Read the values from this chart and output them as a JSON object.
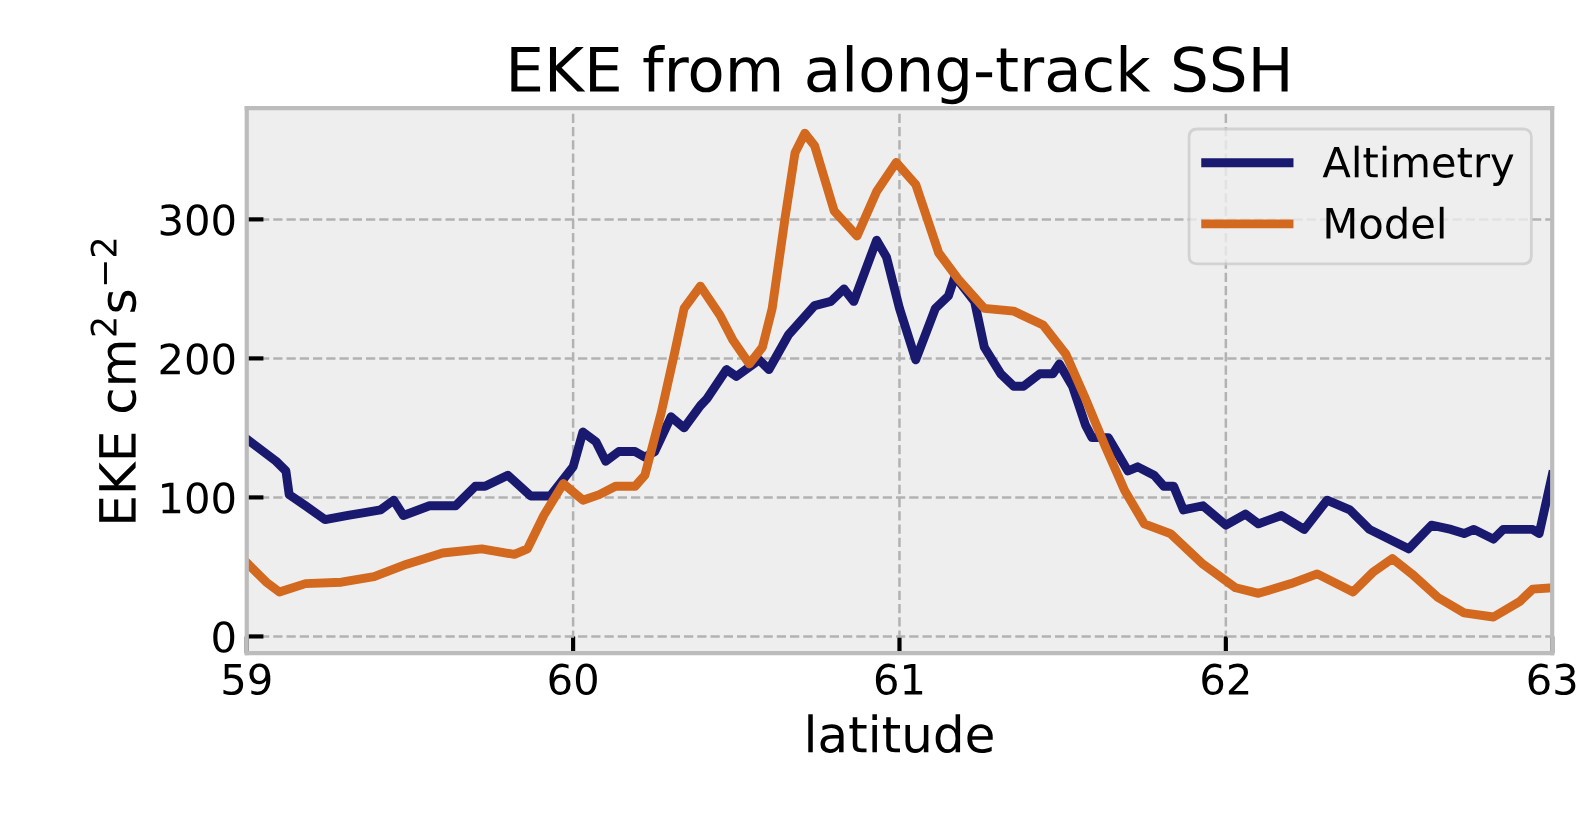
{
  "chart_data": {
    "type": "line",
    "title": "EKE from along-track SSH",
    "xlabel": "latitude",
    "ylabel": "EKE cm$^{2}$s$^{−2}$",
    "xlim": [
      59,
      63
    ],
    "ylim": [
      -12,
      380
    ],
    "xticks": [
      59,
      60,
      61,
      62,
      63
    ],
    "yticks": [
      0,
      100,
      200,
      300
    ],
    "grid": true,
    "legend": "top right",
    "line_style": "solid",
    "marker": "none",
    "series": [
      {
        "name": "Altimetry",
        "color": "#191970",
        "x": [
          59.0,
          59.09,
          59.12,
          59.13,
          59.18,
          59.24,
          59.31,
          59.41,
          59.45,
          59.48,
          59.56,
          59.64,
          59.7,
          59.73,
          59.8,
          59.87,
          59.93,
          60.0,
          60.03,
          60.07,
          60.1,
          60.14,
          60.19,
          60.22,
          60.25,
          60.3,
          60.34,
          60.39,
          60.41,
          60.47,
          60.5,
          60.57,
          60.6,
          60.66,
          60.74,
          60.79,
          60.83,
          60.86,
          60.93,
          60.96,
          61.0,
          61.05,
          61.11,
          61.15,
          61.17,
          61.23,
          61.26,
          61.31,
          61.35,
          61.38,
          61.43,
          61.47,
          61.49,
          61.53,
          61.57,
          61.59,
          61.64,
          61.7,
          61.73,
          61.78,
          61.81,
          61.84,
          61.87,
          61.93,
          62.0,
          62.06,
          62.1,
          62.17,
          62.24,
          62.31,
          62.38,
          62.44,
          62.56,
          62.63,
          62.69,
          62.73,
          62.76,
          62.82,
          62.85,
          62.94,
          62.96,
          63.0
        ],
        "values": [
          142,
          126,
          119,
          102,
          94,
          84,
          87,
          91,
          98,
          87,
          94,
          94,
          108,
          108,
          116,
          101,
          101,
          122,
          147,
          140,
          126,
          133,
          133,
          129,
          133,
          158,
          150,
          166,
          171,
          192,
          187,
          199,
          192,
          217,
          238,
          241,
          250,
          241,
          285,
          273,
          236,
          199,
          236,
          245,
          259,
          241,
          208,
          189,
          180,
          180,
          189,
          189,
          196,
          180,
          152,
          143,
          143,
          119,
          122,
          116,
          108,
          108,
          91,
          94,
          80,
          88,
          81,
          87,
          77,
          98,
          91,
          77,
          63,
          80,
          77,
          74,
          77,
          70,
          77,
          77,
          74,
          116
        ]
      },
      {
        "name": "Model",
        "color": "#d2691e",
        "x": [
          59.0,
          59.06,
          59.1,
          59.18,
          59.29,
          59.39,
          59.49,
          59.6,
          59.72,
          59.82,
          59.86,
          59.91,
          59.97,
          60.03,
          60.08,
          60.13,
          60.19,
          60.22,
          60.27,
          60.31,
          60.34,
          60.39,
          60.45,
          60.49,
          60.54,
          60.58,
          60.61,
          60.65,
          60.68,
          60.71,
          60.74,
          60.8,
          60.87,
          60.93,
          60.99,
          61.05,
          61.12,
          61.18,
          61.26,
          61.35,
          61.44,
          61.51,
          61.57,
          61.63,
          61.69,
          61.75,
          61.83,
          61.93,
          62.03,
          62.1,
          62.2,
          62.28,
          62.39,
          62.45,
          62.51,
          62.57,
          62.65,
          62.73,
          62.82,
          62.9,
          62.94,
          63.0
        ],
        "values": [
          53,
          39,
          32,
          38,
          39,
          43,
          52,
          60,
          63,
          59,
          63,
          87,
          110,
          98,
          102,
          108,
          108,
          116,
          161,
          203,
          236,
          252,
          231,
          213,
          196,
          208,
          236,
          302,
          348,
          362,
          353,
          306,
          288,
          320,
          341,
          325,
          276,
          257,
          236,
          234,
          224,
          203,
          171,
          137,
          105,
          81,
          74,
          52,
          35,
          31,
          38,
          45,
          32,
          46,
          56,
          45,
          28,
          17,
          14,
          25,
          34,
          35
        ]
      }
    ]
  }
}
